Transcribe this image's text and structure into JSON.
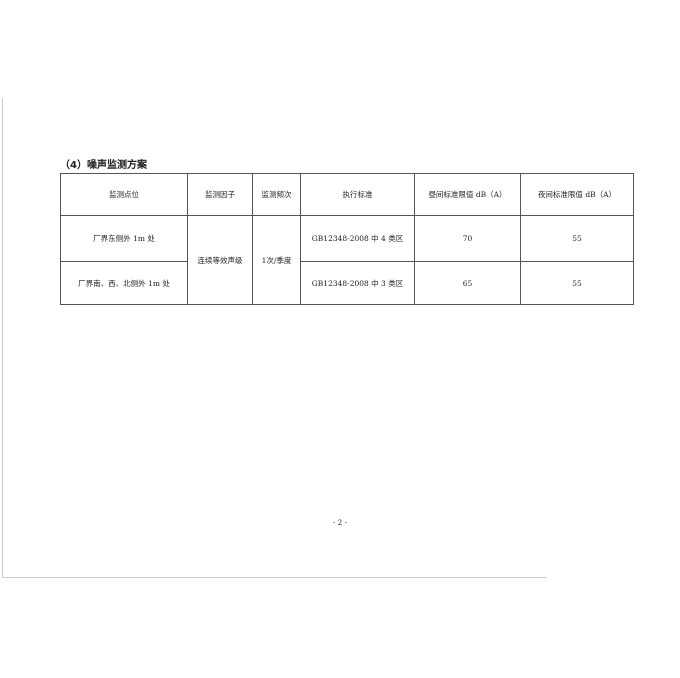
{
  "section_title": "（4）噪声监测方案",
  "table": {
    "headers": [
      "监测点位",
      "监测因子",
      "监测频次",
      "执行标准",
      "昼间标准限值 dB（A）",
      "夜间标准限值 dB（A）"
    ],
    "factor": "连续等效声级",
    "frequency": "1次/季度",
    "rows": [
      {
        "location": "厂界东侧外 1m 处",
        "standard": "GB12348-2008 中 4 类区",
        "day": "70",
        "night": "55"
      },
      {
        "location": "厂界南、西、北侧外 1m 处",
        "standard": "GB12348-2008 中 3 类区",
        "day": "65",
        "night": "55"
      }
    ]
  },
  "page_number": "- 2 -"
}
